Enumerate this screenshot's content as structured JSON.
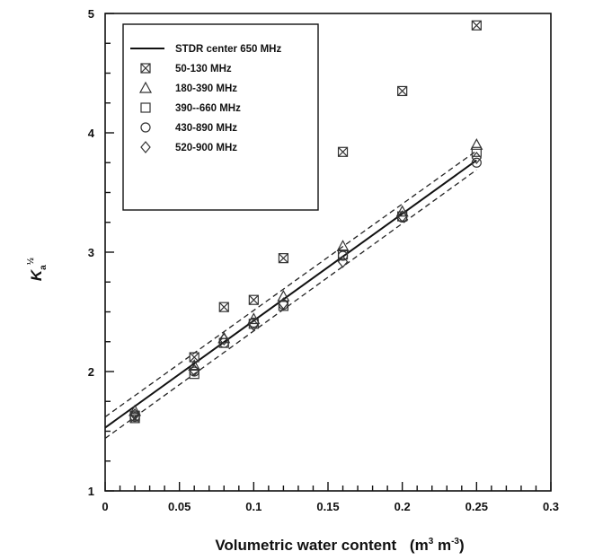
{
  "chart_data": {
    "type": "scatter",
    "xlabel": "Volumetric water content",
    "xlabel_unit_prefix": "(m",
    "xlabel_unit_exp1": "3",
    "xlabel_unit_mid": " m",
    "xlabel_unit_exp2": "-3",
    "xlabel_unit_suffix": ")",
    "ylabel_base": "K",
    "ylabel_sub": "a",
    "ylabel_sup": "½",
    "xlim": [
      0,
      0.3
    ],
    "ylim": [
      1,
      5
    ],
    "xticks": [
      "0",
      "0.05",
      "0.1",
      "0.15",
      "0.2",
      "0.25",
      "0.3"
    ],
    "yticks": [
      "1",
      "2",
      "3",
      "4",
      "5"
    ],
    "grid": false,
    "legend_position": "top-left",
    "fit_line": {
      "name": "STDR center 650 MHz",
      "x": [
        0,
        0.25
      ],
      "y": [
        1.53,
        3.77
      ]
    },
    "confidence_bands": [
      {
        "x": [
          0,
          0.25
        ],
        "y": [
          1.62,
          3.85
        ]
      },
      {
        "x": [
          0,
          0.25
        ],
        "y": [
          1.44,
          3.69
        ]
      }
    ],
    "series": [
      {
        "name": "50-130 MHz",
        "marker": "square-x",
        "x": [
          0.02,
          0.06,
          0.08,
          0.1,
          0.12,
          0.16,
          0.2,
          0.25
        ],
        "y": [
          1.61,
          2.12,
          2.54,
          2.6,
          2.95,
          3.84,
          4.35,
          4.9
        ]
      },
      {
        "name": "180-390 MHz",
        "marker": "triangle",
        "x": [
          0.02,
          0.06,
          0.08,
          0.1,
          0.12,
          0.16,
          0.2,
          0.25
        ],
        "y": [
          1.67,
          2.05,
          2.28,
          2.44,
          2.63,
          3.05,
          3.34,
          3.9
        ]
      },
      {
        "name": "390--660 MHz",
        "marker": "square",
        "x": [
          0.02,
          0.06,
          0.08,
          0.1,
          0.12,
          0.16,
          0.2,
          0.25
        ],
        "y": [
          1.63,
          1.98,
          2.24,
          2.4,
          2.55,
          2.98,
          3.3,
          3.84
        ]
      },
      {
        "name": "430-890 MHz",
        "marker": "circle",
        "x": [
          0.02,
          0.06,
          0.08,
          0.1,
          0.12,
          0.16,
          0.2,
          0.25
        ],
        "y": [
          1.62,
          2.0,
          2.24,
          2.41,
          2.56,
          2.97,
          3.29,
          3.75
        ]
      },
      {
        "name": "520-900 MHz",
        "marker": "diamond",
        "x": [
          0.02,
          0.06,
          0.08,
          0.1,
          0.12,
          0.16,
          0.2,
          0.25
        ],
        "y": [
          1.64,
          2.01,
          2.27,
          2.39,
          2.57,
          2.92,
          3.3,
          3.79
        ]
      }
    ]
  }
}
